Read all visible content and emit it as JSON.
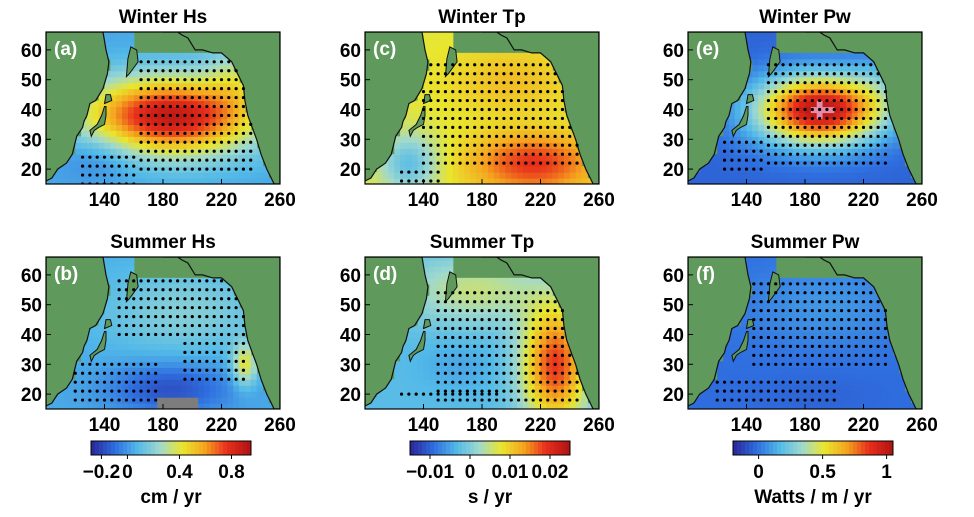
{
  "chart_data": [
    {
      "type": "heatmap",
      "panel": "(a)",
      "title": "Winter  Hs",
      "season": "winter",
      "field": "Hs",
      "xticks": [
        140,
        180,
        220,
        260
      ],
      "yticks": [
        20,
        30,
        40,
        50,
        60
      ],
      "xlim": [
        100,
        260
      ],
      "ylim": [
        15,
        66
      ],
      "colorbar": null
    },
    {
      "type": "heatmap",
      "panel": "(b)",
      "title": "Summer  Hs",
      "season": "summer",
      "field": "Hs",
      "xticks": [
        140,
        180,
        220,
        260
      ],
      "yticks": [
        20,
        30,
        40,
        50,
        60
      ],
      "xlim": [
        100,
        260
      ],
      "ylim": [
        15,
        66
      ],
      "colorbar": {
        "ticks": [
          -0.2,
          0,
          0.4,
          0.8
        ],
        "tick_labels": [
          "−0.2",
          "0",
          "0.4",
          "0.8"
        ],
        "range": [
          -0.28,
          0.95
        ],
        "label": "cm / yr"
      }
    },
    {
      "type": "heatmap",
      "panel": "(c)",
      "title": "Winter  Tp",
      "season": "winter",
      "field": "Tp",
      "xticks": [
        140,
        180,
        220,
        260
      ],
      "yticks": [
        20,
        30,
        40,
        50,
        60
      ],
      "xlim": [
        100,
        260
      ],
      "ylim": [
        15,
        66
      ],
      "colorbar": null
    },
    {
      "type": "heatmap",
      "panel": "(d)",
      "title": "Summer  Tp",
      "season": "summer",
      "field": "Tp",
      "xticks": [
        140,
        180,
        220,
        260
      ],
      "yticks": [
        20,
        30,
        40,
        50,
        60
      ],
      "xlim": [
        100,
        260
      ],
      "ylim": [
        15,
        66
      ],
      "colorbar": {
        "ticks": [
          -0.01,
          0,
          0.01,
          0.02
        ],
        "tick_labels": [
          "−0.01",
          "0",
          "0.01",
          "0.02"
        ],
        "range": [
          -0.015,
          0.025
        ],
        "label": "s / yr"
      }
    },
    {
      "type": "heatmap",
      "panel": "(e)",
      "title": "Winter  Pw",
      "season": "winter",
      "field": "Pw",
      "xticks": [
        140,
        180,
        220,
        260
      ],
      "yticks": [
        20,
        30,
        40,
        50,
        60
      ],
      "xlim": [
        100,
        260
      ],
      "ylim": [
        15,
        66
      ],
      "colorbar": null
    },
    {
      "type": "heatmap",
      "panel": "(f)",
      "title": "Summer  Pw",
      "season": "summer",
      "field": "Pw",
      "xticks": [
        140,
        180,
        220,
        260
      ],
      "yticks": [
        20,
        30,
        40,
        50,
        60
      ],
      "xlim": [
        100,
        260
      ],
      "ylim": [
        15,
        66
      ],
      "colorbar": {
        "ticks": [
          0,
          0.5,
          1
        ],
        "tick_labels": [
          "0",
          "0.5",
          "1"
        ],
        "range": [
          -0.2,
          1.05
        ],
        "label": "Watts / m / yr"
      }
    }
  ],
  "colors": {
    "land": "#5f9a5c",
    "colormap": [
      "#2b2b9e",
      "#2f6fe0",
      "#52b9e8",
      "#9fd9cf",
      "#e9e62e",
      "#f5a51f",
      "#e8301c",
      "#b51414"
    ],
    "saturated_high": "#e58aa8",
    "saturated_low": "#7d7d7d",
    "significance_dot": "#000000"
  }
}
